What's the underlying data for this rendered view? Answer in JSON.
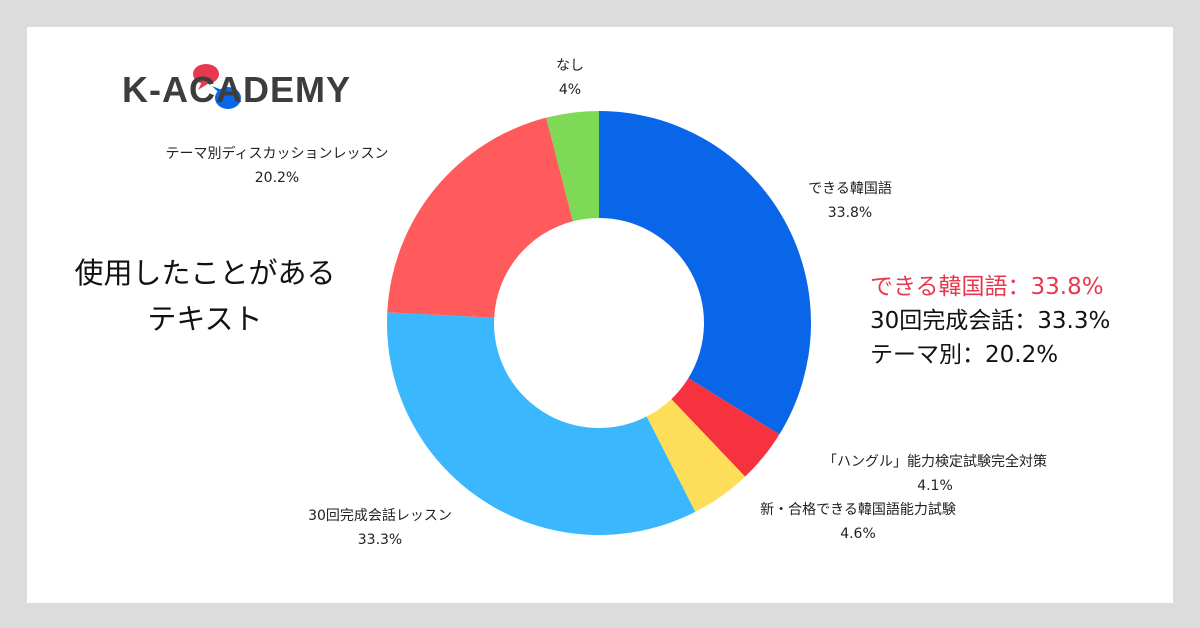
{
  "brand": {
    "name": "K-ACADEMY",
    "bubble_red": "#e8384f",
    "bubble_blue": "#0a66e8"
  },
  "title": {
    "line1": "使用したことがある",
    "line2": "テキスト"
  },
  "summary": [
    {
      "text": "できる韓国語：33.8%",
      "highlight": true
    },
    {
      "text": "30回完成会話：33.3%",
      "highlight": false
    },
    {
      "text": "テーマ別：20.2%",
      "highlight": false
    }
  ],
  "chart_data": {
    "type": "pie",
    "donut": true,
    "categories": [
      "できる韓国語",
      "「ハングル」能力検定試験完全対策",
      "新・合格できる韓国語能力試験",
      "30回完成会話レッスン",
      "テーマ別ディスカッションレッスン",
      "なし"
    ],
    "values": [
      33.8,
      4.1,
      4.6,
      33.3,
      20.2,
      4
    ],
    "value_labels": [
      "33.8%",
      "4.1%",
      "4.6%",
      "33.3%",
      "20.2%",
      "4%"
    ],
    "colors": [
      "#0a66e8",
      "#f7323f",
      "#fedd58",
      "#3bb8fd",
      "#ff5a5c",
      "#7ed957"
    ],
    "title": "",
    "start_angle": "12 o'clock, clockwise",
    "legend": "none"
  }
}
